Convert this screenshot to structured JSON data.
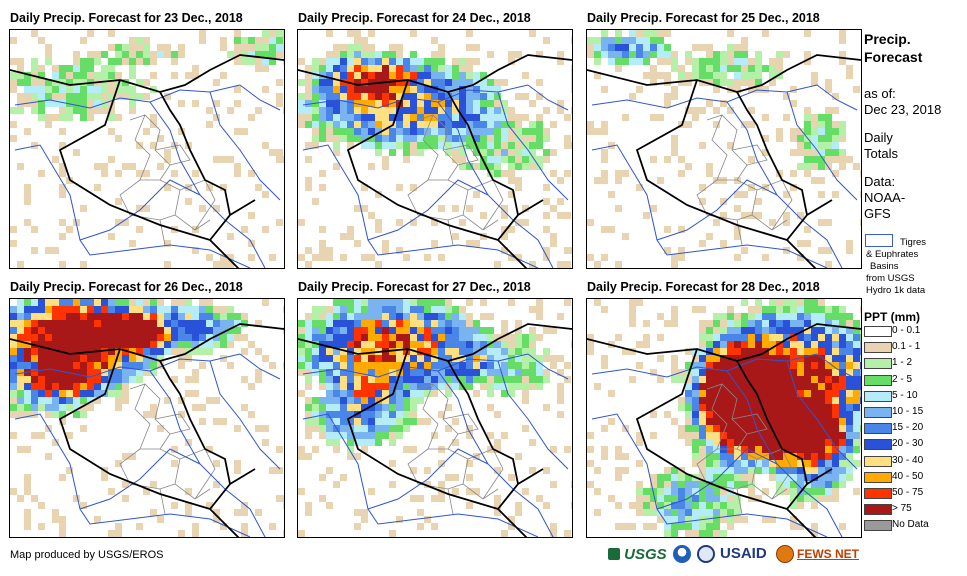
{
  "panels": [
    {
      "title": "Daily Precip. Forecast for 23 Dec., 2018"
    },
    {
      "title": "Daily Precip. Forecast for 24 Dec., 2018"
    },
    {
      "title": "Daily Precip. Forecast for 25 Dec., 2018"
    },
    {
      "title": "Daily Precip. Forecast for 26 Dec., 2018"
    },
    {
      "title": "Daily Precip. Forecast for 27 Dec., 2018"
    },
    {
      "title": "Daily Precip. Forecast for 28 Dec., 2018"
    }
  ],
  "sidebar": {
    "title_line1": "Precip.",
    "title_line2": "Forecast",
    "asof_line1": "as of:",
    "asof_line2": "Dec 23, 2018",
    "daily_line1": "Daily",
    "daily_line2": "Totals",
    "data_line1": "Data:",
    "data_line2": "NOAA-",
    "data_line3": "GFS",
    "basin_line1": "Tigres",
    "basin_line2": "& Euphrates",
    "basin_line3": "Basins",
    "basin_line4": "from USGS",
    "basin_line5": "Hydro 1k data"
  },
  "legend": {
    "title": "PPT (mm)",
    "items": [
      {
        "label": "0 - 0.1",
        "color": "#ffffff"
      },
      {
        "label": "0.1 - 1",
        "color": "#e8d4b0"
      },
      {
        "label": "1 - 2",
        "color": "#b4f0a8"
      },
      {
        "label": "2 - 5",
        "color": "#66dd66"
      },
      {
        "label": "5 - 10",
        "color": "#b4ecf8"
      },
      {
        "label": "10 - 15",
        "color": "#7ab4f0"
      },
      {
        "label": "15 - 20",
        "color": "#4a86e8"
      },
      {
        "label": "20 - 30",
        "color": "#2a52d8"
      },
      {
        "label": "30 - 40",
        "color": "#ffe080"
      },
      {
        "label": "40 - 50",
        "color": "#ffaa00"
      },
      {
        "label": "50 - 75",
        "color": "#ff3300"
      },
      {
        "label": "> 75",
        "color": "#a81818"
      },
      {
        "label": "No Data",
        "color": "#9a9a9a"
      }
    ]
  },
  "footer": {
    "credit": "Map produced by USGS/EROS",
    "logo_usgs": "USGS",
    "logo_usaid": "USAID",
    "logo_fews": "FEWS NET"
  }
}
